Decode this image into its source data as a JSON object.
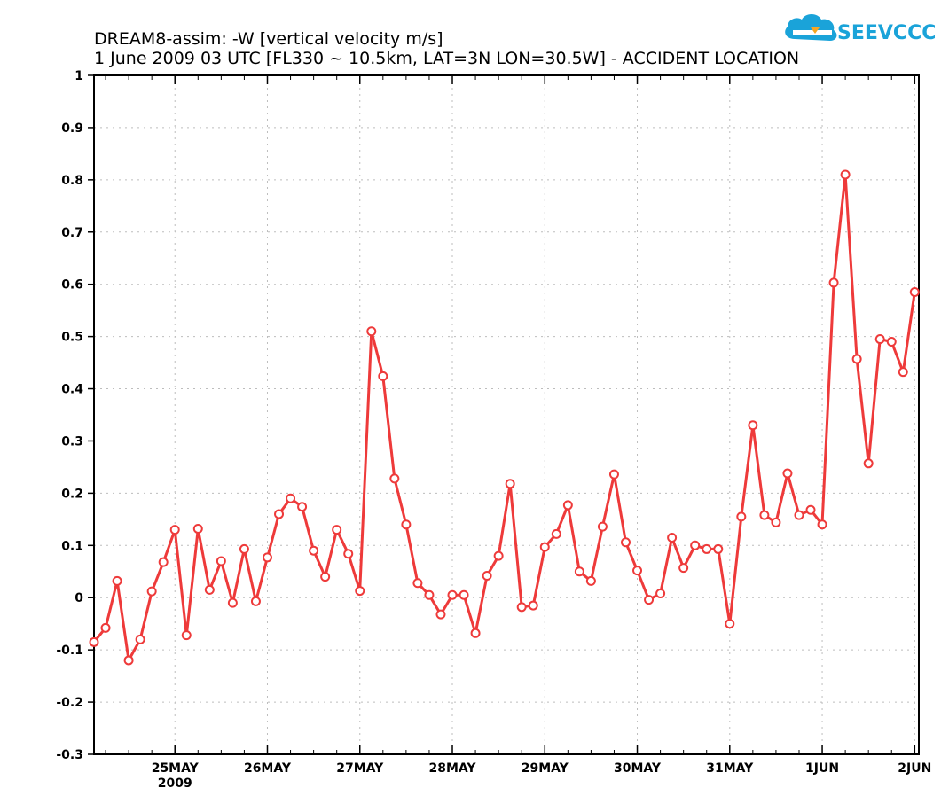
{
  "title": {
    "line1": "DREAM8-assim: -W  [vertical velocity m/s]",
    "line2": "1 June 2009 03 UTC [FL330 ~ 10.5km, LAT=3N LON=30.5W] -  ACCIDENT LOCATION"
  },
  "logo": {
    "text": "SEEVCCC",
    "icon": "cloud-icon",
    "color": "#1aa3d9"
  },
  "chart_data": {
    "type": "line",
    "title": "DREAM8-assim: -W  [vertical velocity m/s]",
    "subtitle": "1 June 2009 03 UTC [FL330 ~ 10.5km, LAT=3N LON=30.5W] -  ACCIDENT LOCATION",
    "xlabel": "",
    "ylabel": "",
    "x_unit": "days since 24 May 2009 03 UTC",
    "xlim": [
      0,
      8.92
    ],
    "ylim": [
      -0.3,
      1.0
    ],
    "y_ticks": [
      -0.3,
      -0.2,
      -0.1,
      0,
      0.1,
      0.2,
      0.3,
      0.4,
      0.5,
      0.6,
      0.7,
      0.8,
      0.9,
      1
    ],
    "y_tick_labels": [
      "-0.3",
      "-0.2",
      "-0.1",
      "0",
      "0.1",
      "0.2",
      "0.3",
      "0.4",
      "0.5",
      "0.6",
      "0.7",
      "0.8",
      "0.9",
      "1"
    ],
    "x_ticks": [
      {
        "x": 0.875,
        "label": "25MAY",
        "sublabel": "2009"
      },
      {
        "x": 1.875,
        "label": "26MAY",
        "sublabel": ""
      },
      {
        "x": 2.875,
        "label": "27MAY",
        "sublabel": ""
      },
      {
        "x": 3.875,
        "label": "28MAY",
        "sublabel": ""
      },
      {
        "x": 4.875,
        "label": "29MAY",
        "sublabel": ""
      },
      {
        "x": 5.875,
        "label": "30MAY",
        "sublabel": ""
      },
      {
        "x": 6.875,
        "label": "31MAY",
        "sublabel": ""
      },
      {
        "x": 7.875,
        "label": "1JUN",
        "sublabel": ""
      },
      {
        "x": 8.875,
        "label": "2JUN",
        "sublabel": ""
      }
    ],
    "grid": true,
    "series": [
      {
        "name": "",
        "color": "#ee3a3a",
        "x_step_hours": 3,
        "values": [
          -0.085,
          -0.058,
          0.032,
          -0.12,
          -0.08,
          0.012,
          0.068,
          0.13,
          -0.072,
          0.132,
          0.015,
          0.07,
          -0.01,
          0.093,
          -0.007,
          0.077,
          0.16,
          0.19,
          0.174,
          0.09,
          0.04,
          0.13,
          0.084,
          0.013,
          0.51,
          0.424,
          0.228,
          0.14,
          0.028,
          0.005,
          -0.032,
          0.005,
          0.005,
          -0.068,
          0.042,
          0.08,
          0.218,
          -0.018,
          -0.015,
          0.097,
          0.122,
          0.177,
          0.05,
          0.032,
          0.136,
          0.236,
          0.106,
          0.052,
          -0.004,
          0.008,
          0.115,
          0.057,
          0.1,
          0.093,
          0.093,
          -0.05,
          0.155,
          0.33,
          0.158,
          0.144,
          0.238,
          0.158,
          0.168,
          0.14,
          0.603,
          0.81,
          0.457,
          0.257,
          0.495,
          0.49,
          0.432,
          0.585
        ]
      }
    ]
  }
}
